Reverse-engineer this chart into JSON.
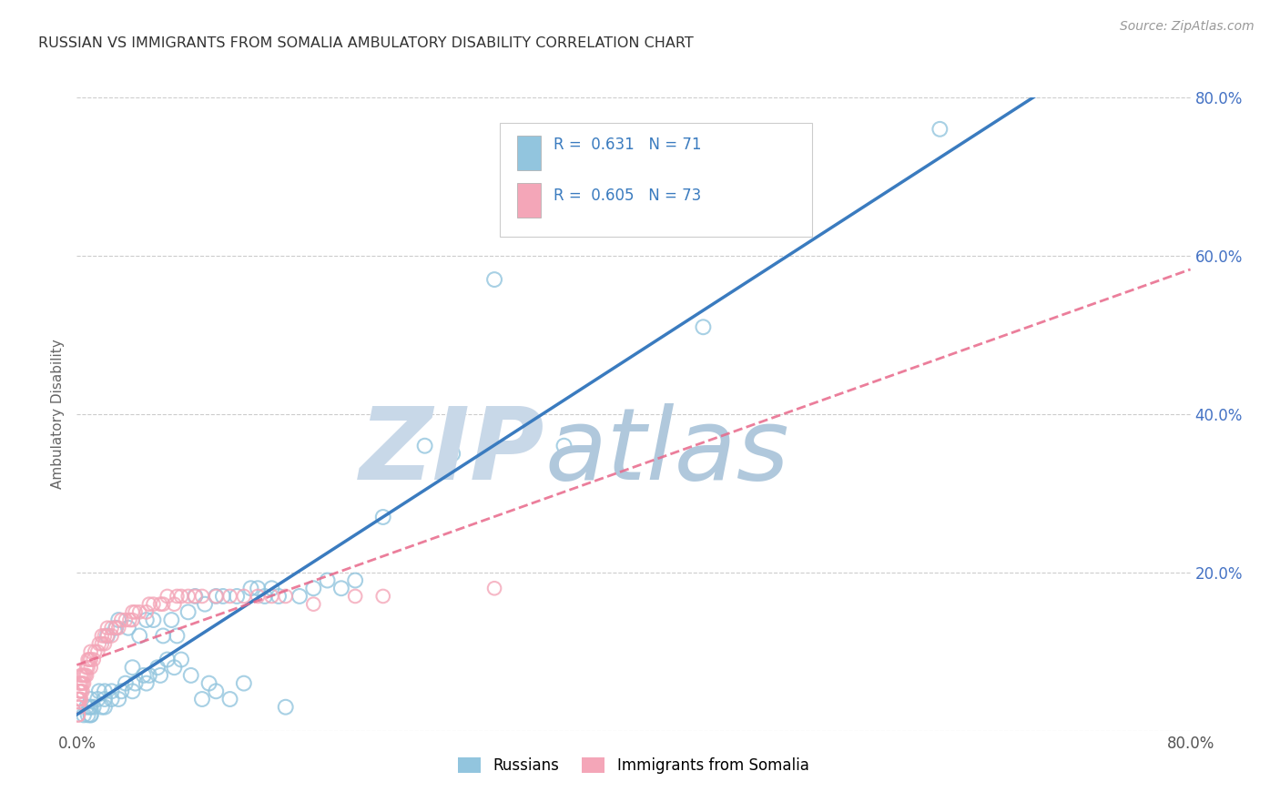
{
  "title": "RUSSIAN VS IMMIGRANTS FROM SOMALIA AMBULATORY DISABILITY CORRELATION CHART",
  "source": "Source: ZipAtlas.com",
  "ylabel": "Ambulatory Disability",
  "xlim": [
    0.0,
    0.8
  ],
  "ylim": [
    0.0,
    0.8
  ],
  "ytick_labels_right": [
    "",
    "20.0%",
    "40.0%",
    "60.0%",
    "80.0%"
  ],
  "xtick_labels": [
    "0.0%",
    "",
    "",
    "",
    "80.0%"
  ],
  "legend_label1": "Russians",
  "legend_label2": "Immigrants from Somalia",
  "blue_color": "#92c5de",
  "pink_color": "#f4a6b8",
  "blue_line_color": "#3a7bbf",
  "pink_line_color": "#e8688a",
  "title_color": "#333333",
  "r_value_color": "#3a7bbf",
  "watermark_zip_color": "#c8d8e8",
  "watermark_atlas_color": "#b0c8dc",
  "background_color": "#ffffff",
  "grid_color": "#cccccc",
  "russians_x": [
    0.005,
    0.007,
    0.008,
    0.009,
    0.01,
    0.01,
    0.01,
    0.01,
    0.012,
    0.015,
    0.016,
    0.018,
    0.02,
    0.02,
    0.02,
    0.022,
    0.025,
    0.025,
    0.028,
    0.03,
    0.03,
    0.032,
    0.035,
    0.037,
    0.04,
    0.04,
    0.042,
    0.045,
    0.048,
    0.05,
    0.05,
    0.052,
    0.055,
    0.058,
    0.06,
    0.062,
    0.065,
    0.068,
    0.07,
    0.072,
    0.075,
    0.08,
    0.082,
    0.085,
    0.09,
    0.092,
    0.095,
    0.1,
    0.1,
    0.105,
    0.11,
    0.115,
    0.12,
    0.125,
    0.13,
    0.135,
    0.14,
    0.145,
    0.15,
    0.16,
    0.17,
    0.18,
    0.19,
    0.2,
    0.22,
    0.25,
    0.27,
    0.3,
    0.35,
    0.45,
    0.62
  ],
  "russians_y": [
    0.02,
    0.03,
    0.02,
    0.03,
    0.02,
    0.04,
    0.03,
    0.02,
    0.03,
    0.04,
    0.05,
    0.03,
    0.04,
    0.05,
    0.03,
    0.12,
    0.04,
    0.05,
    0.13,
    0.04,
    0.14,
    0.05,
    0.06,
    0.13,
    0.05,
    0.08,
    0.06,
    0.12,
    0.07,
    0.06,
    0.14,
    0.07,
    0.14,
    0.08,
    0.07,
    0.12,
    0.09,
    0.14,
    0.08,
    0.12,
    0.09,
    0.15,
    0.07,
    0.17,
    0.04,
    0.16,
    0.06,
    0.17,
    0.05,
    0.17,
    0.04,
    0.17,
    0.06,
    0.18,
    0.18,
    0.17,
    0.18,
    0.17,
    0.03,
    0.17,
    0.18,
    0.19,
    0.18,
    0.19,
    0.27,
    0.36,
    0.35,
    0.57,
    0.36,
    0.51,
    0.76
  ],
  "somalia_x": [
    0.001,
    0.001,
    0.001,
    0.001,
    0.001,
    0.001,
    0.002,
    0.002,
    0.002,
    0.002,
    0.002,
    0.002,
    0.003,
    0.003,
    0.003,
    0.003,
    0.004,
    0.004,
    0.004,
    0.005,
    0.005,
    0.006,
    0.007,
    0.007,
    0.008,
    0.008,
    0.009,
    0.01,
    0.01,
    0.01,
    0.012,
    0.013,
    0.015,
    0.016,
    0.018,
    0.018,
    0.02,
    0.02,
    0.022,
    0.022,
    0.025,
    0.025,
    0.028,
    0.03,
    0.032,
    0.035,
    0.038,
    0.04,
    0.04,
    0.042,
    0.045,
    0.05,
    0.052,
    0.055,
    0.06,
    0.062,
    0.065,
    0.07,
    0.072,
    0.075,
    0.08,
    0.085,
    0.09,
    0.1,
    0.11,
    0.12,
    0.13,
    0.14,
    0.15,
    0.17,
    0.2,
    0.22,
    0.3
  ],
  "somalia_y": [
    0.02,
    0.02,
    0.03,
    0.03,
    0.04,
    0.04,
    0.03,
    0.04,
    0.04,
    0.05,
    0.05,
    0.06,
    0.04,
    0.05,
    0.06,
    0.07,
    0.05,
    0.06,
    0.07,
    0.06,
    0.07,
    0.07,
    0.07,
    0.08,
    0.08,
    0.09,
    0.09,
    0.08,
    0.09,
    0.1,
    0.09,
    0.1,
    0.1,
    0.11,
    0.11,
    0.12,
    0.11,
    0.12,
    0.12,
    0.13,
    0.12,
    0.13,
    0.13,
    0.13,
    0.14,
    0.14,
    0.14,
    0.14,
    0.15,
    0.15,
    0.15,
    0.15,
    0.16,
    0.16,
    0.16,
    0.16,
    0.17,
    0.16,
    0.17,
    0.17,
    0.17,
    0.17,
    0.17,
    0.17,
    0.17,
    0.17,
    0.17,
    0.17,
    0.17,
    0.16,
    0.17,
    0.17,
    0.18
  ]
}
